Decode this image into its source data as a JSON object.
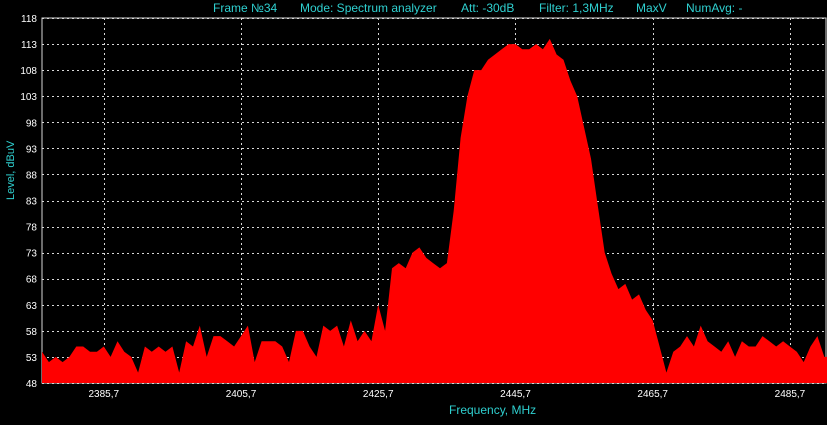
{
  "header": {
    "frame": "Frame №34",
    "mode": "Mode: Spectrum analyzer",
    "att": "Att: -30dB",
    "filter": "Filter: 1,3MHz",
    "maxv": "MaxV",
    "numavg": "NumAvg: -"
  },
  "colors": {
    "fill": "#ff0000",
    "grid": "#d8d8d8",
    "label": "#2fd0d0",
    "ticks": "#ffffff"
  },
  "chart_data": {
    "type": "area",
    "title": "",
    "xlabel": "Frequency, MHz",
    "ylabel": "Level, dBuV",
    "xlim": [
      2376.7,
      2491.1
    ],
    "ylim": [
      48,
      118
    ],
    "grid": true,
    "y_ticks": [
      48,
      53,
      58,
      63,
      68,
      73,
      78,
      83,
      88,
      93,
      98,
      103,
      108,
      113,
      118
    ],
    "x_ticks": [
      "2385,7",
      "2405,7",
      "2425,7",
      "2445,7",
      "2465,7",
      "2485,7"
    ],
    "x_tick_values": [
      2385.7,
      2405.7,
      2425.7,
      2445.7,
      2465.7,
      2485.7
    ],
    "series": [
      {
        "x": [
          2376.7,
          2377.7,
          2378.7,
          2379.7,
          2380.7,
          2381.7,
          2382.7,
          2383.7,
          2384.7,
          2385.7,
          2386.7,
          2387.7,
          2388.7,
          2389.7,
          2390.7,
          2391.7,
          2392.7,
          2393.7,
          2394.7,
          2395.7,
          2396.7,
          2397.7,
          2398.7,
          2399.7,
          2400.7,
          2401.7,
          2402.7,
          2403.7,
          2404.7,
          2405.7,
          2406.7,
          2407.7,
          2408.7,
          2409.7,
          2410.7,
          2411.7,
          2412.7,
          2413.7,
          2414.7,
          2415.7,
          2416.7,
          2417.7,
          2418.7,
          2419.7,
          2420.7,
          2421.7,
          2422.7,
          2423.7,
          2424.7,
          2425.7,
          2426.7,
          2427.7,
          2428.7,
          2429.7,
          2430.7,
          2431.7,
          2432.7,
          2433.7,
          2434.7,
          2435.7,
          2436.7,
          2437.7,
          2438.7,
          2439.7,
          2440.7,
          2441.7,
          2442.7,
          2443.7,
          2444.7,
          2445.7,
          2446.7,
          2447.7,
          2448.7,
          2449.7,
          2450.7,
          2451.7,
          2452.7,
          2453.7,
          2454.7,
          2455.7,
          2456.7,
          2457.7,
          2458.7,
          2459.7,
          2460.7,
          2461.7,
          2462.7,
          2463.7,
          2464.7,
          2465.7,
          2466.7,
          2467.7,
          2468.7,
          2469.7,
          2470.7,
          2471.7,
          2472.7,
          2473.7,
          2474.7,
          2475.7,
          2476.7,
          2477.7,
          2478.7,
          2479.7,
          2480.7,
          2481.7,
          2482.7,
          2483.7,
          2484.7,
          2485.7,
          2486.7,
          2487.7,
          2488.7,
          2489.7,
          2490.7,
          2491.1
        ],
        "y": [
          54,
          52,
          53,
          52,
          53,
          55,
          55,
          54,
          54,
          55,
          53,
          56,
          54,
          53,
          50,
          55,
          54,
          55,
          54,
          55,
          50,
          56,
          55,
          59,
          53,
          57,
          57,
          56,
          55,
          57,
          59,
          52,
          56,
          56,
          56,
          55,
          52,
          58,
          58,
          55,
          53,
          59,
          58,
          59,
          55,
          60,
          56,
          58,
          56,
          63,
          58,
          70,
          71,
          70,
          73,
          74,
          72,
          71,
          70,
          71,
          81,
          95,
          103,
          108,
          108,
          110,
          111,
          112,
          113,
          113,
          112,
          112,
          113,
          112,
          114,
          111,
          110,
          106,
          103,
          97,
          91,
          82,
          73,
          69,
          66,
          67,
          64,
          65,
          62,
          60,
          55,
          50,
          54,
          55,
          57,
          55,
          59,
          56,
          55,
          54,
          56,
          53,
          56,
          55,
          55,
          57,
          56,
          55,
          56,
          55,
          54,
          52,
          55,
          57,
          53,
          53
        ]
      }
    ]
  }
}
